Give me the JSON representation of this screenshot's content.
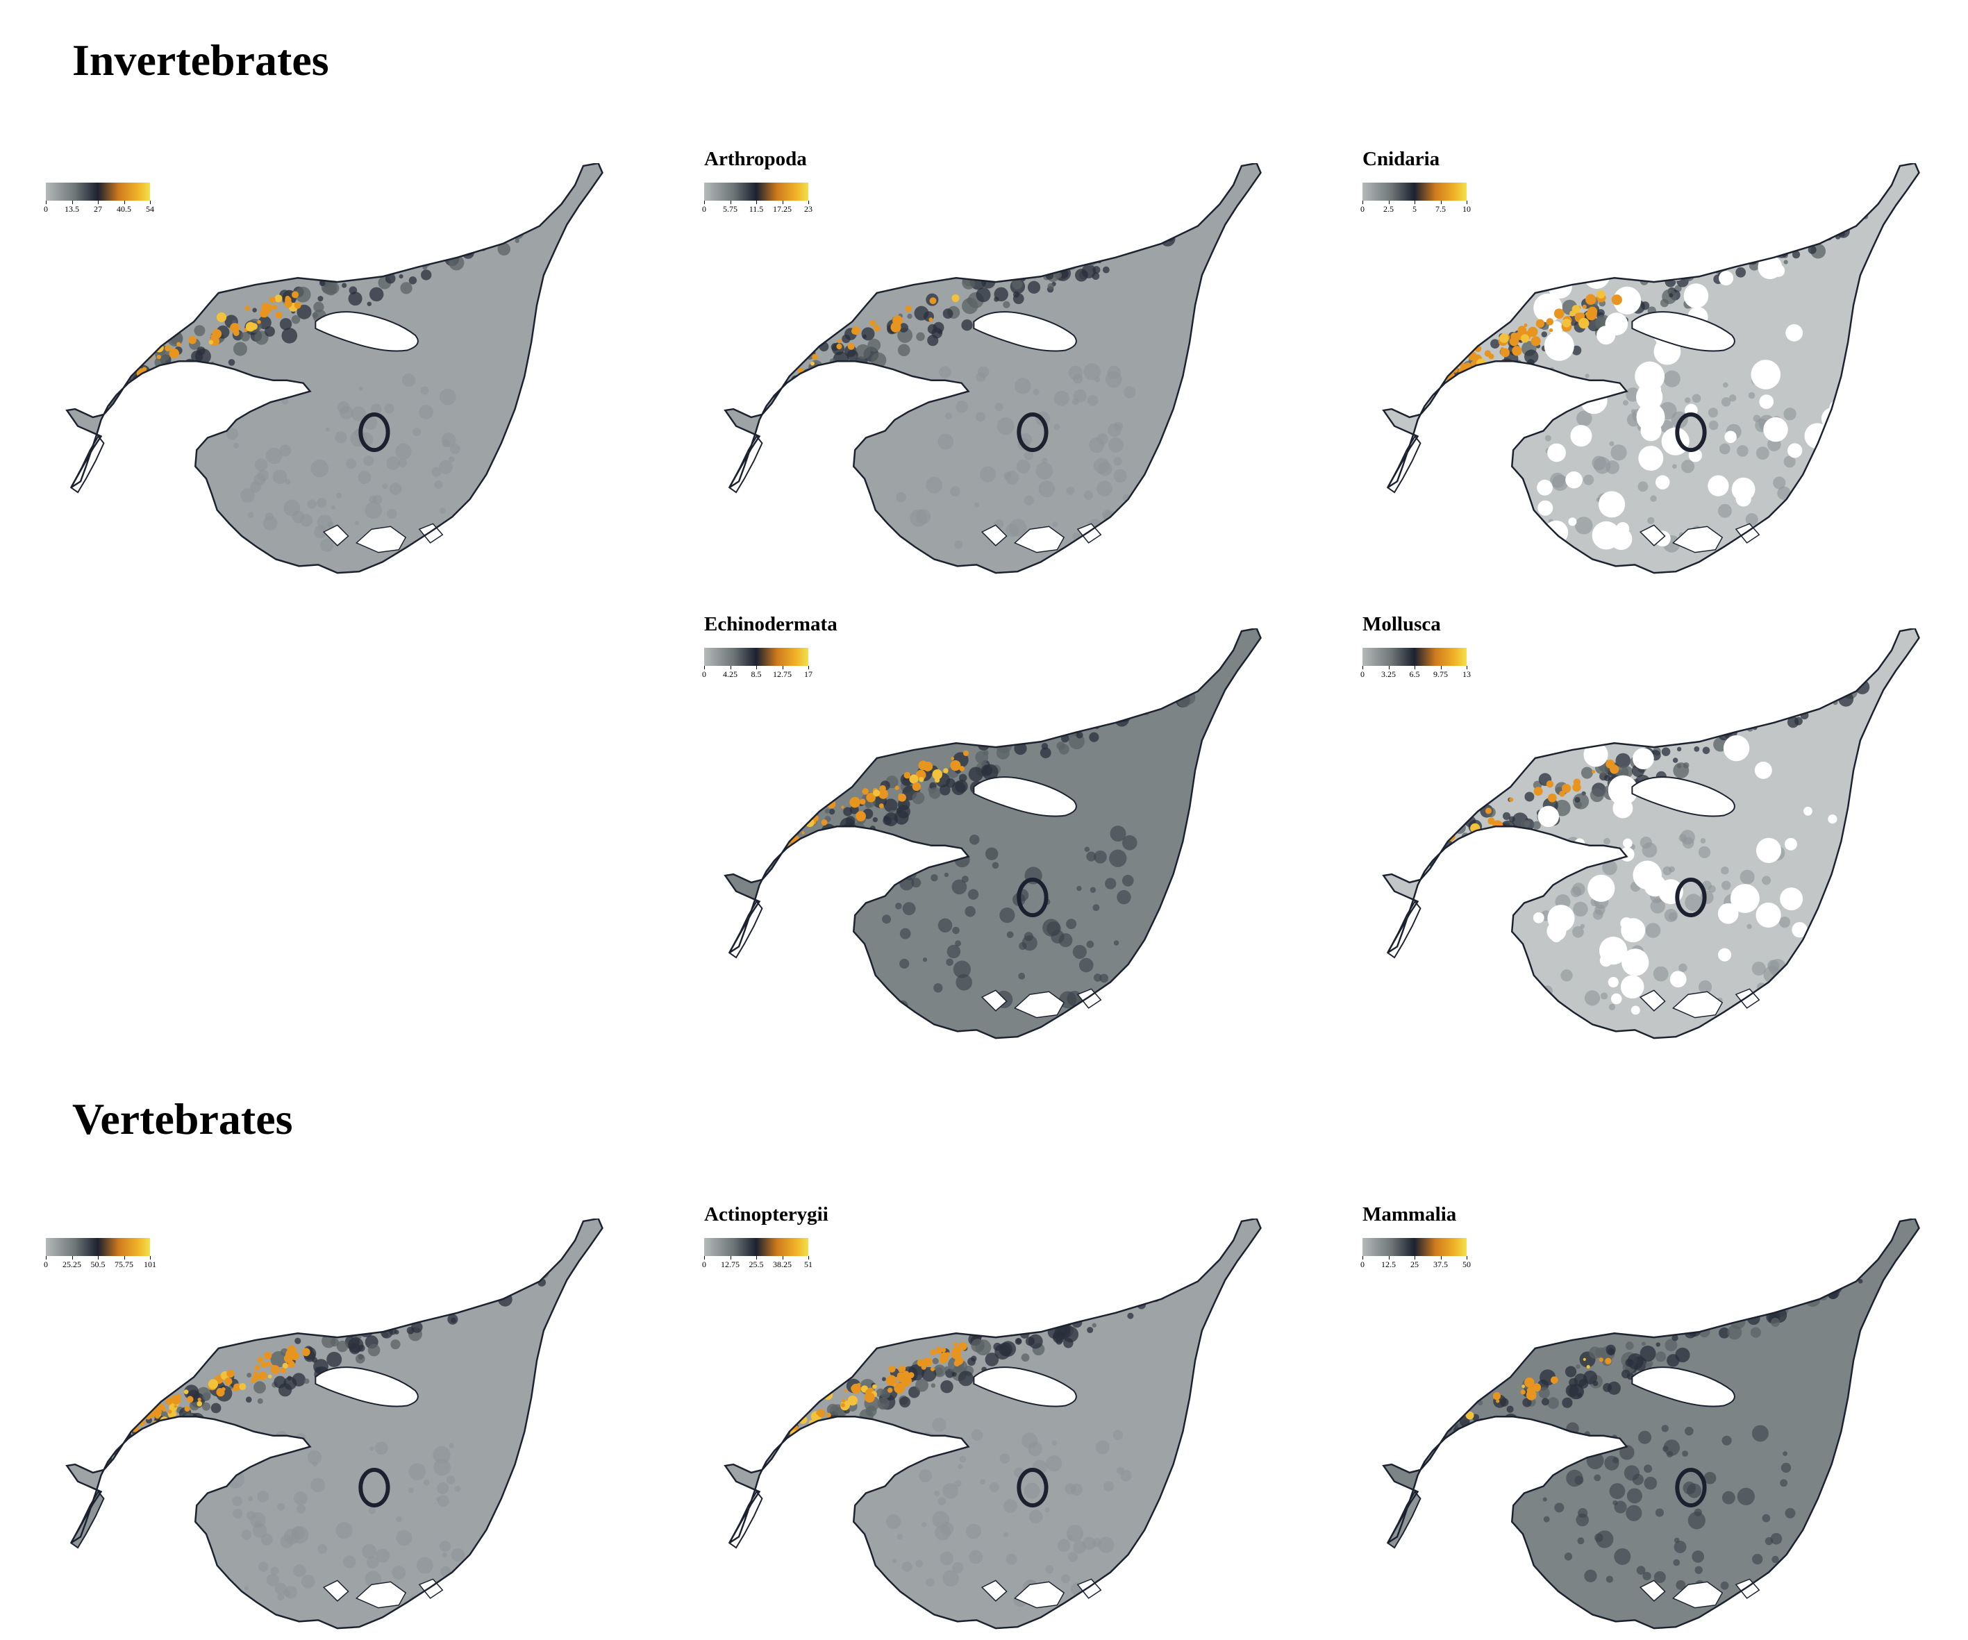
{
  "sections": [
    {
      "title": "Invertebrates"
    },
    {
      "title": "Vertebrates"
    }
  ],
  "panels": [
    {
      "id": "inv-total",
      "title": "",
      "ticks": [
        "0",
        "13.5",
        "27",
        "40.5",
        "54"
      ],
      "pattern": "standard",
      "hotspot": "medium"
    },
    {
      "id": "arthropoda",
      "title": "Arthropoda",
      "ticks": [
        "0",
        "5.75",
        "11.5",
        "17.25",
        "23"
      ],
      "pattern": "standard",
      "hotspot": "low"
    },
    {
      "id": "cnidaria",
      "title": "Cnidaria",
      "ticks": [
        "0",
        "2.5",
        "5",
        "7.5",
        "10"
      ],
      "pattern": "patchy",
      "hotspot": "high"
    },
    {
      "id": "echinodermata",
      "title": "Echinodermata",
      "ticks": [
        "0",
        "4.25",
        "8.5",
        "12.75",
        "17"
      ],
      "pattern": "dark",
      "hotspot": "medium"
    },
    {
      "id": "mollusca",
      "title": "Mollusca",
      "ticks": [
        "0",
        "3.25",
        "6.5",
        "9.75",
        "13"
      ],
      "pattern": "patchy-light",
      "hotspot": "low"
    },
    {
      "id": "vert-total",
      "title": "",
      "ticks": [
        "0",
        "25.25",
        "50.5",
        "75.75",
        "101"
      ],
      "pattern": "standard",
      "hotspot": "high"
    },
    {
      "id": "actinopterygii",
      "title": "Actinopterygii",
      "ticks": [
        "0",
        "12.75",
        "25.5",
        "38.25",
        "51"
      ],
      "pattern": "standard",
      "hotspot": "high"
    },
    {
      "id": "mammalia",
      "title": "Mammalia",
      "ticks": [
        "0",
        "12.5",
        "25",
        "37.5",
        "50"
      ],
      "pattern": "dark",
      "hotspot": "low"
    }
  ],
  "colorscale": [
    "#b4b9b9",
    "#6e7677",
    "#1c2130",
    "#cf7a1d",
    "#f0b128",
    "#f2e04a"
  ],
  "colors": {
    "land_outline": "#1c2130",
    "water_base": "#9ea4a5",
    "hotspot": "#e8951f",
    "gap": "#ffffff"
  }
}
